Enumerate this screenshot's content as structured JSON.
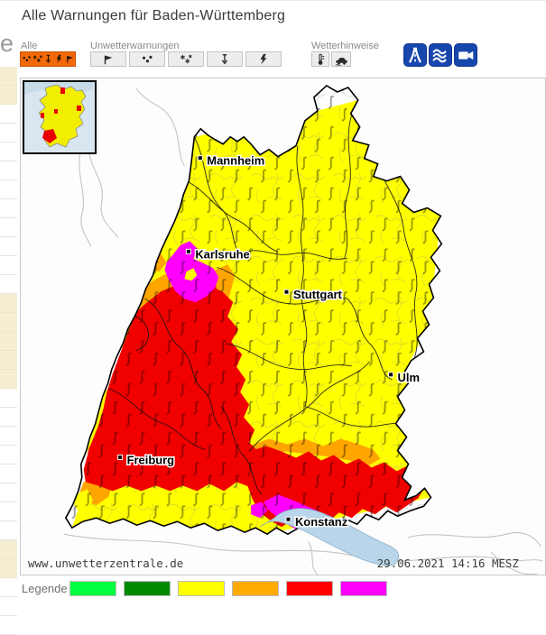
{
  "header": {
    "title": "Alle Warnungen für Baden-Württemberg",
    "sidebar_partial_text": "e"
  },
  "toolbar": {
    "groups": [
      {
        "label": "Alle"
      },
      {
        "label": "Unwetterwarnungen"
      },
      {
        "label": "Wetterhinweise"
      }
    ],
    "buttons": {
      "alle": "alle-warnungen",
      "unwetter": [
        "sturm",
        "starkregen",
        "schneefall",
        "temperatursturz",
        "gewitter"
      ],
      "hinweise": [
        "frost",
        "glaette"
      ],
      "links": [
        "verkehrslage",
        "wasserstand",
        "webcams"
      ]
    }
  },
  "map": {
    "cities": [
      {
        "name": "Mannheim"
      },
      {
        "name": "Karlsruhe"
      },
      {
        "name": "Stuttgart"
      },
      {
        "name": "Ulm"
      },
      {
        "name": "Freiburg"
      },
      {
        "name": "Konstanz"
      }
    ],
    "watermark": "www.unwetterzentrale.de",
    "timestamp": "29.06.2021 14:16 MESZ"
  },
  "map_colors": {
    "yellow": "#FFFF00",
    "orange": "#FFA500",
    "red": "#F10000",
    "magenta": "#FF00FF",
    "lake": "#B9D5E9"
  },
  "legend": {
    "label": "Legende",
    "levels": [
      {
        "color": "#00FF40"
      },
      {
        "color": "#008A00"
      },
      {
        "color": "#FFFF00"
      },
      {
        "color": "#FFAB00"
      },
      {
        "color": "#FF0000"
      },
      {
        "color": "#FF00FF"
      }
    ]
  }
}
